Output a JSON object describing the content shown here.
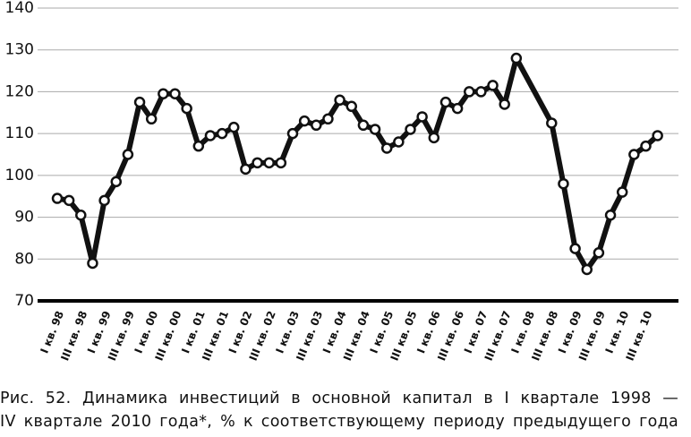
{
  "chart_data": {
    "type": "line",
    "categories": [
      "I кв. 98",
      null,
      "III кв. 98",
      null,
      "I кв. 99",
      null,
      "III кв. 99",
      null,
      "I кв. 00",
      null,
      "III кв. 00",
      null,
      "I кв. 01",
      null,
      "III кв. 01",
      null,
      "I кв. 02",
      null,
      "III кв. 02",
      null,
      "I кв. 03",
      null,
      "III кв. 03",
      null,
      "I кв. 04",
      null,
      "III кв. 04",
      null,
      "I кв. 05",
      null,
      "III кв. 05",
      null,
      "I кв. 06",
      null,
      "III кв. 06",
      null,
      "I кв. 07",
      null,
      "III кв. 07",
      null,
      "I кв. 08",
      null,
      "III кв. 08",
      null,
      "I кв. 09",
      null,
      "III кв. 09",
      null,
      "I кв. 10",
      null,
      "III кв. 10",
      null
    ],
    "series": [
      {
        "color": "#111111",
        "values": [
          94.5,
          94,
          90.5,
          79,
          94,
          98.5,
          105,
          117.5,
          113.5,
          119.5,
          119.5,
          116,
          107,
          109.5,
          110,
          111.5,
          101.5,
          103,
          103,
          103,
          110,
          113,
          112,
          113.5,
          118,
          116.5,
          112,
          111,
          106.5,
          108,
          111,
          114,
          109,
          117.5,
          116,
          120,
          120,
          121.5,
          117,
          128,
          null,
          null,
          112.5,
          98,
          82.5,
          77.5,
          81.5,
          90.5,
          96,
          105,
          107,
          109.5
        ]
      }
    ],
    "ylim": [
      70,
      140
    ],
    "yticks": [
      70,
      80,
      90,
      100,
      110,
      120,
      130,
      140
    ],
    "grid": true,
    "caption": [
      "Рис. 52. Динамика инвестиций в основной капитал в I квартале 1998 —",
      "IV квартале 2010 года*, % к соответствующему периоду предыдущего года"
    ]
  }
}
